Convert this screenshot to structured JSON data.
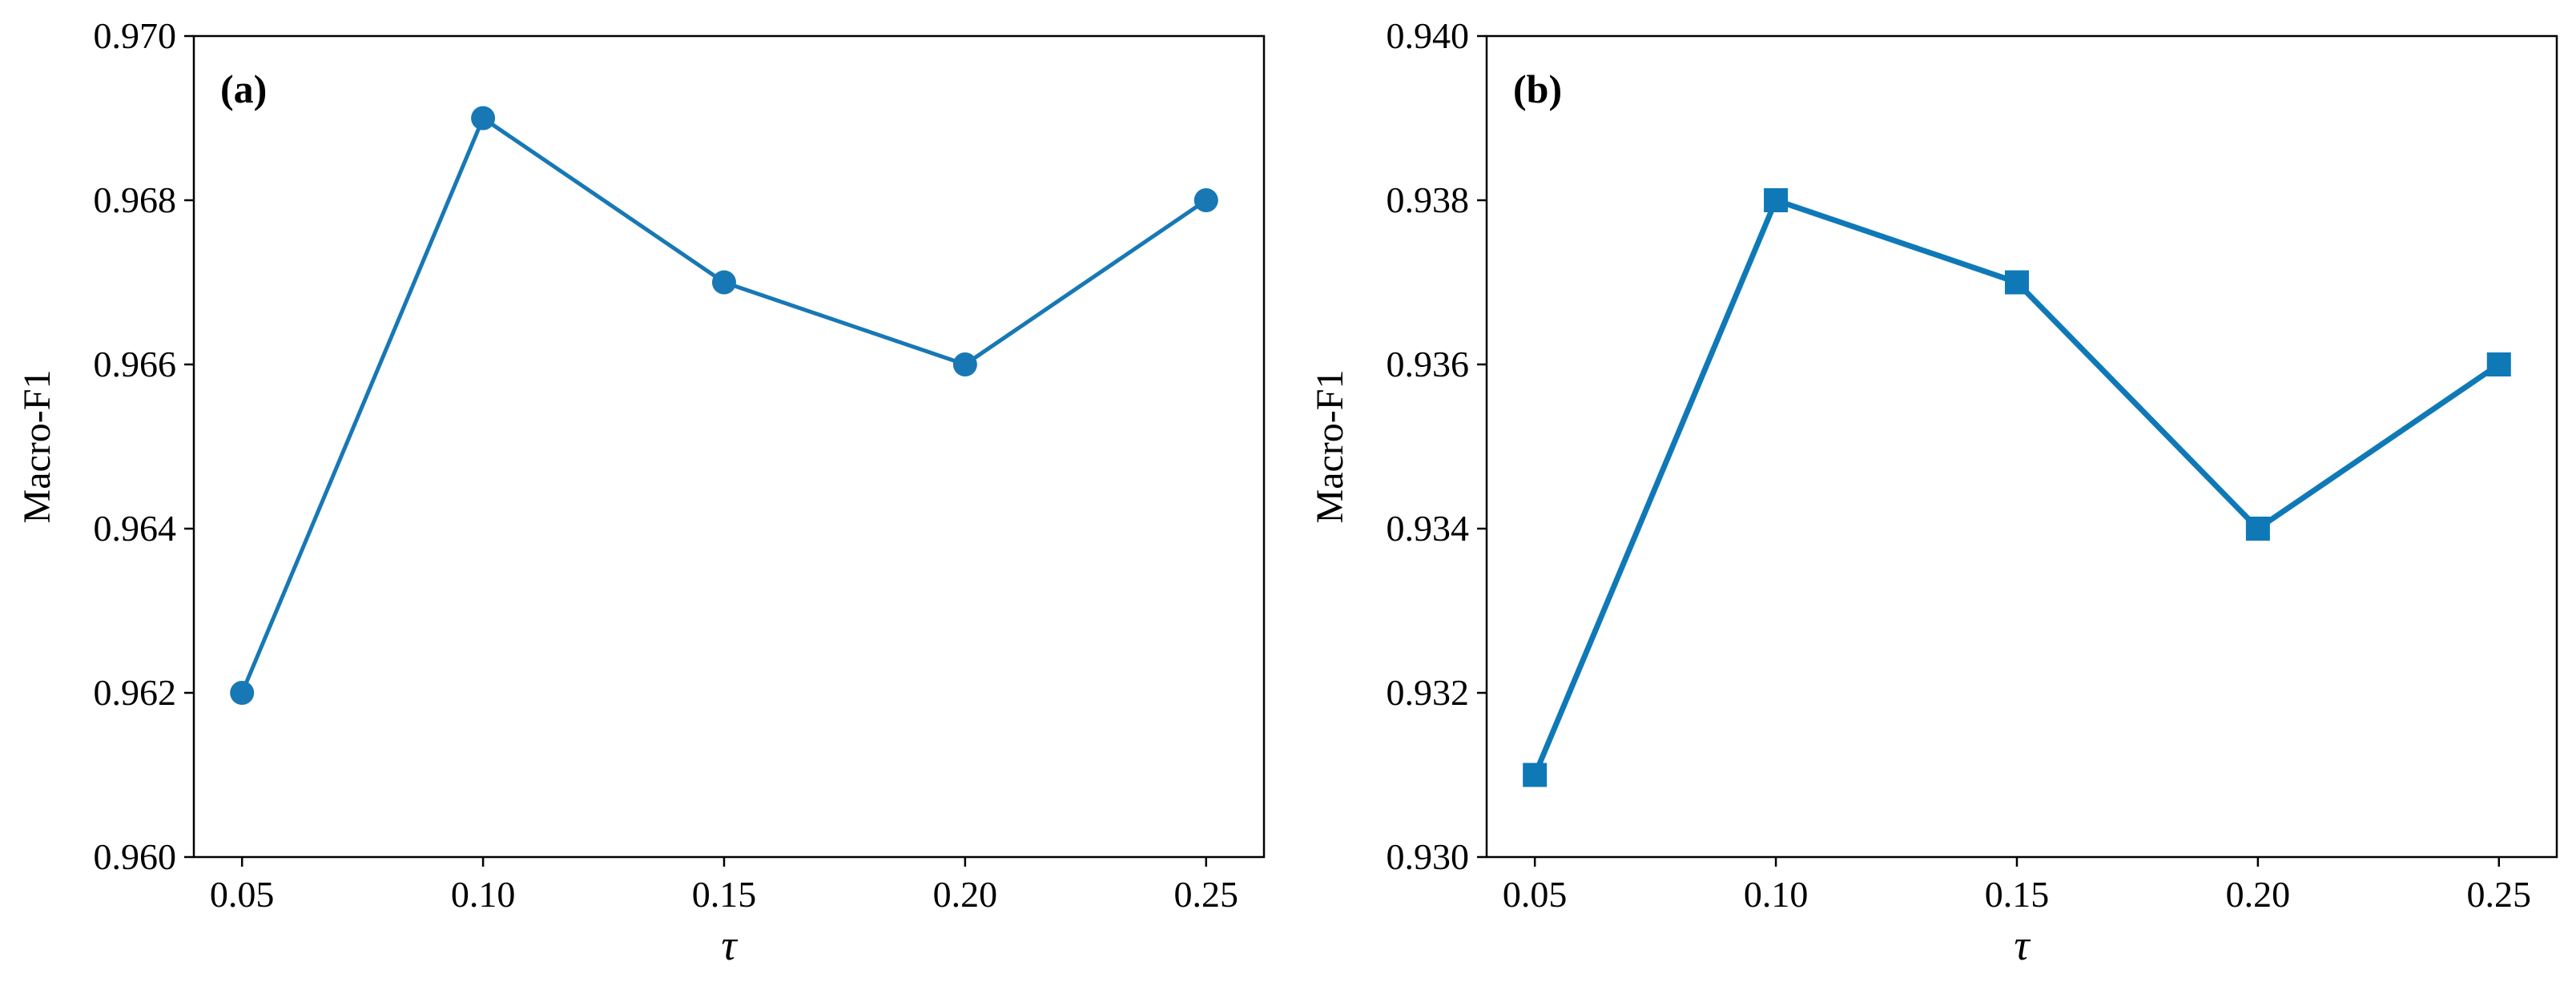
{
  "figure": {
    "background": "#ffffff"
  },
  "chart_data": [
    {
      "panel_label": "(a)",
      "type": "line",
      "x": [
        0.05,
        0.1,
        0.15,
        0.2,
        0.25
      ],
      "xticklabels": [
        "0.05",
        "0.10",
        "0.15",
        "0.20",
        "0.25"
      ],
      "xlim": [
        0.04,
        0.262
      ],
      "series": [
        {
          "values": [
            0.962,
            0.969,
            0.967,
            0.966,
            0.968
          ],
          "color": "#1778b5",
          "marker": "circle"
        }
      ],
      "xlabel": "τ",
      "ylabel": "Macro-F1",
      "ylim": [
        0.96,
        0.97
      ],
      "yticks": [
        0.96,
        0.962,
        0.964,
        0.966,
        0.968,
        0.97
      ],
      "yticklabels": [
        "0.960",
        "0.962",
        "0.964",
        "0.966",
        "0.968",
        "0.970"
      ],
      "grid": false,
      "legend": false
    },
    {
      "panel_label": "(b)",
      "type": "line",
      "x": [
        0.05,
        0.1,
        0.15,
        0.2,
        0.25
      ],
      "xticklabels": [
        "0.05",
        "0.10",
        "0.15",
        "0.20",
        "0.25"
      ],
      "xlim": [
        0.04,
        0.262
      ],
      "series": [
        {
          "values": [
            0.931,
            0.938,
            0.937,
            0.934,
            0.936
          ],
          "color": "#0f79b8",
          "marker": "square"
        }
      ],
      "xlabel": "τ",
      "ylabel": "Macro-F1",
      "ylim": [
        0.93,
        0.94
      ],
      "yticks": [
        0.93,
        0.932,
        0.934,
        0.936,
        0.938,
        0.94
      ],
      "yticklabels": [
        "0.930",
        "0.932",
        "0.934",
        "0.936",
        "0.938",
        "0.940"
      ],
      "grid": false,
      "legend": false
    }
  ]
}
